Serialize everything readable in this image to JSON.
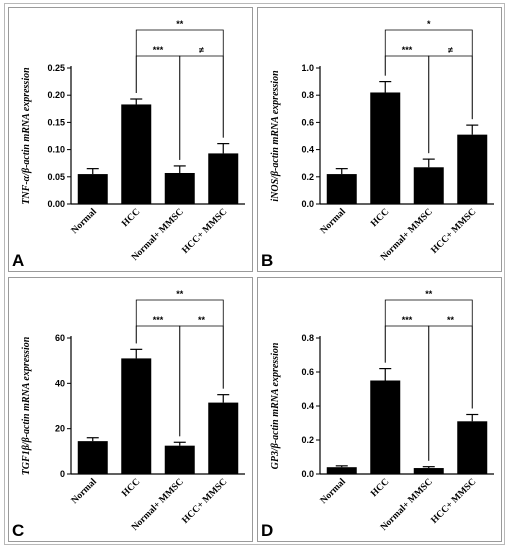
{
  "chart_data": [
    {
      "panel": "A",
      "type": "bar",
      "ylabel": "TNF-α/β-actin mRNA expression",
      "categories": [
        "Normal",
        "HCC",
        "Normal+ MMSC",
        "HCC+ MMSC"
      ],
      "values": [
        0.055,
        0.183,
        0.057,
        0.093
      ],
      "errors": [
        0.01,
        0.01,
        0.013,
        0.018
      ],
      "ylim": [
        0,
        0.25
      ],
      "yticks": [
        "0.00",
        "0.05",
        "0.10",
        "0.15",
        "0.20",
        "0.25"
      ],
      "comparisons": [
        {
          "from": 1,
          "to": 2,
          "label": "***"
        },
        {
          "from": 2,
          "to": 3,
          "label": "≠"
        },
        {
          "from": 1,
          "to": 3,
          "label": "**"
        }
      ]
    },
    {
      "panel": "B",
      "type": "bar",
      "ylabel": "iNOS/β-actin mRNA expression",
      "categories": [
        "Normal",
        "HCC",
        "Normal+ MMSC",
        "HCC+ MMSC"
      ],
      "values": [
        0.22,
        0.82,
        0.27,
        0.51
      ],
      "errors": [
        0.04,
        0.08,
        0.06,
        0.07
      ],
      "ylim": [
        0,
        1.0
      ],
      "yticks": [
        "0.0",
        "0.2",
        "0.4",
        "0.6",
        "0.8",
        "1.0"
      ],
      "comparisons": [
        {
          "from": 1,
          "to": 2,
          "label": "***"
        },
        {
          "from": 2,
          "to": 3,
          "label": "≠"
        },
        {
          "from": 1,
          "to": 3,
          "label": "*"
        }
      ]
    },
    {
      "panel": "C",
      "type": "bar",
      "ylabel": "TGF1β/β-actin mRNA expression",
      "categories": [
        "Normal",
        "HCC",
        "Normal+ MMSC",
        "HCC+ MMSC"
      ],
      "values": [
        14.5,
        51,
        12.5,
        31.5
      ],
      "errors": [
        1.5,
        4,
        1.5,
        3.5
      ],
      "ylim": [
        0,
        60
      ],
      "yticks": [
        "0",
        "20",
        "40",
        "60"
      ],
      "comparisons": [
        {
          "from": 1,
          "to": 2,
          "label": "***"
        },
        {
          "from": 2,
          "to": 3,
          "label": "**"
        },
        {
          "from": 1,
          "to": 3,
          "label": "**"
        }
      ]
    },
    {
      "panel": "D",
      "type": "bar",
      "ylabel": "GP3/β-actin mRNA expression",
      "categories": [
        "Normal",
        "HCC",
        "Normal+ MMSC",
        "HCC+ MMSC"
      ],
      "values": [
        0.04,
        0.55,
        0.035,
        0.31
      ],
      "errors": [
        0.008,
        0.07,
        0.008,
        0.04
      ],
      "ylim": [
        0,
        0.8
      ],
      "yticks": [
        "0.0",
        "0.2",
        "0.4",
        "0.6",
        "0.8"
      ],
      "comparisons": [
        {
          "from": 1,
          "to": 2,
          "label": "***"
        },
        {
          "from": 2,
          "to": 3,
          "label": "**"
        },
        {
          "from": 1,
          "to": 3,
          "label": "**"
        }
      ]
    }
  ]
}
